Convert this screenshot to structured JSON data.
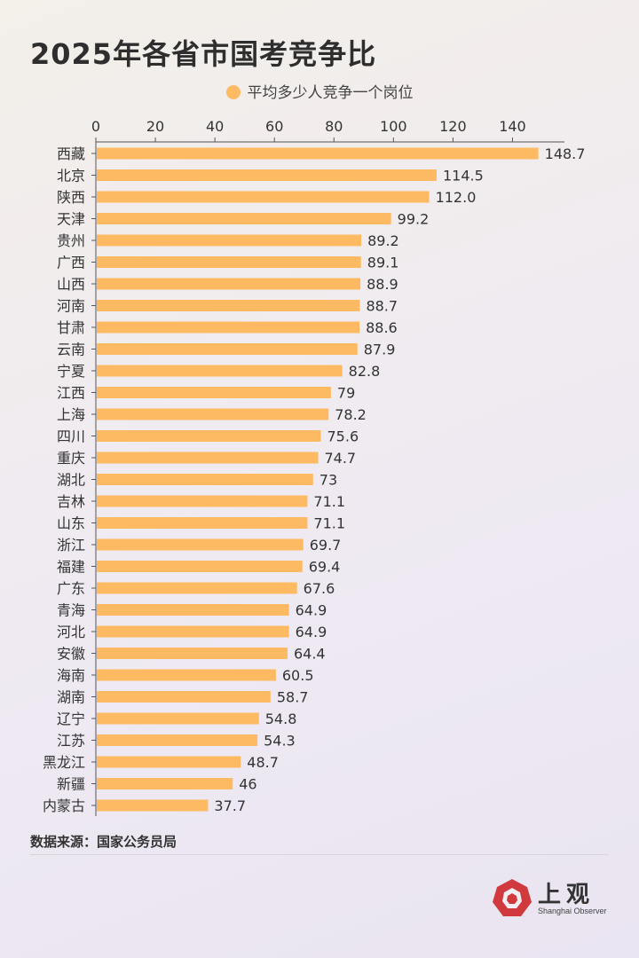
{
  "title": "2025年各省市国考竞争比",
  "legend": {
    "label": "平均多少人竞争一个岗位"
  },
  "source": "数据来源：国家公务员局",
  "brand": {
    "cn": "上观",
    "en": "Shanghai Observer"
  },
  "colors": {
    "bar": "#FDBA63",
    "logo": "#d0393e"
  },
  "chart_data": {
    "type": "bar",
    "orientation": "horizontal",
    "title": "2025年各省市国考竞争比",
    "xlim": [
      0,
      150
    ],
    "ticks": [
      0,
      20,
      40,
      60,
      80,
      100,
      120,
      140
    ],
    "axis_position": "top",
    "grid": false,
    "legend_position": "top-center",
    "series": [
      {
        "name": "平均多少人竞争一个岗位"
      }
    ],
    "categories": [
      "西藏",
      "北京",
      "陕西",
      "天津",
      "贵州",
      "广西",
      "山西",
      "河南",
      "甘肃",
      "云南",
      "宁夏",
      "江西",
      "上海",
      "四川",
      "重庆",
      "湖北",
      "吉林",
      "山东",
      "浙江",
      "福建",
      "广东",
      "青海",
      "河北",
      "安徽",
      "海南",
      "湖南",
      "辽宁",
      "江苏",
      "黑龙江",
      "新疆",
      "内蒙古"
    ],
    "values": [
      148.7,
      114.5,
      112.0,
      99.2,
      89.2,
      89.1,
      88.9,
      88.7,
      88.6,
      87.9,
      82.8,
      79,
      78.2,
      75.6,
      74.7,
      73,
      71.1,
      71.1,
      69.7,
      69.4,
      67.6,
      64.9,
      64.9,
      64.4,
      60.5,
      58.7,
      54.8,
      54.3,
      48.7,
      46,
      37.7
    ],
    "labels": [
      "148.7",
      "114.5",
      "112.0",
      "99.2",
      "89.2",
      "89.1",
      "88.9",
      "88.7",
      "88.6",
      "87.9",
      "82.8",
      "79",
      "78.2",
      "75.6",
      "74.7",
      "73",
      "71.1",
      "71.1",
      "69.7",
      "69.4",
      "67.6",
      "64.9",
      "64.9",
      "64.4",
      "60.5",
      "58.7",
      "54.8",
      "54.3",
      "48.7",
      "46",
      "37.7"
    ]
  }
}
